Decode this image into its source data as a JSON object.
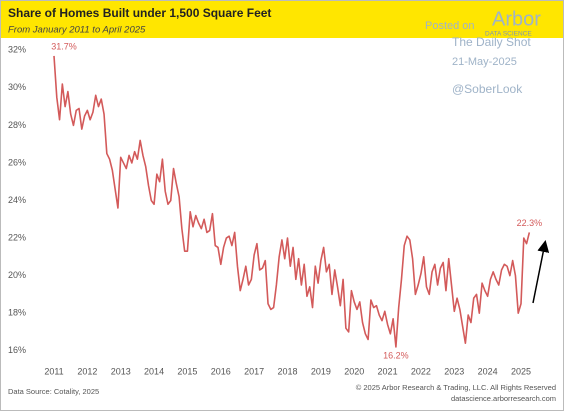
{
  "chart_data": {
    "type": "line",
    "title": "Share of Homes Built under 1,500 Square Feet",
    "subtitle": "From January 2011 to April 2025",
    "source": "Data Source: Cotality, 2025",
    "copyright": "© 2025 Arbor Research & Trading, LLC. All Rights Reserved",
    "website": "datascience.arborresearch.com",
    "watermark": {
      "posted": "Posted on",
      "brand": "Arbor",
      "brand_sub": "DATA SCIENCE",
      "outlet": "The Daily Shot",
      "date": "21-May-2025",
      "handle": "@SoberLook"
    },
    "categories": [
      "2011",
      null,
      null,
      null,
      null,
      null,
      null,
      null,
      null,
      null,
      null,
      null,
      "2012",
      null,
      null,
      null,
      null,
      null,
      null,
      null,
      null,
      null,
      null,
      null,
      "2013",
      null,
      null,
      null,
      null,
      null,
      null,
      null,
      null,
      null,
      null,
      null,
      "2014",
      null,
      null,
      null,
      null,
      null,
      null,
      null,
      null,
      null,
      null,
      null,
      "2015",
      null,
      null,
      null,
      null,
      null,
      null,
      null,
      null,
      null,
      null,
      null,
      "2016",
      null,
      null,
      null,
      null,
      null,
      null,
      null,
      null,
      null,
      null,
      null,
      "2017",
      null,
      null,
      null,
      null,
      null,
      null,
      null,
      null,
      null,
      null,
      null,
      "2018",
      null,
      null,
      null,
      null,
      null,
      null,
      null,
      null,
      null,
      null,
      null,
      "2019",
      null,
      null,
      null,
      null,
      null,
      null,
      null,
      null,
      null,
      null,
      null,
      "2020",
      null,
      null,
      null,
      null,
      null,
      null,
      null,
      null,
      null,
      null,
      null,
      "2021",
      null,
      null,
      null,
      null,
      null,
      null,
      null,
      null,
      null,
      null,
      null,
      "2022",
      null,
      null,
      null,
      null,
      null,
      null,
      null,
      null,
      null,
      null,
      null,
      "2023",
      null,
      null,
      null,
      null,
      null,
      null,
      null,
      null,
      null,
      null,
      null,
      "2024",
      null,
      null,
      null,
      null,
      null,
      null,
      null,
      null,
      null,
      null,
      null,
      "2025",
      null,
      null,
      null
    ],
    "series": [
      {
        "color": "#d35a5a",
        "values": [
          31.7,
          29.5,
          28.3,
          30.2,
          29.0,
          29.8,
          28.6,
          28.0,
          28.8,
          28.9,
          27.8,
          28.5,
          28.8,
          28.3,
          28.7,
          29.6,
          29.0,
          29.4,
          28.6,
          26.5,
          26.2,
          25.6,
          24.6,
          23.6,
          26.3,
          26.0,
          25.7,
          26.4,
          26.0,
          26.6,
          26.2,
          27.2,
          26.4,
          25.8,
          24.8,
          24.0,
          23.8,
          25.4,
          25.0,
          26.2,
          24.5,
          23.8,
          24.0,
          25.7,
          24.9,
          24.2,
          22.5,
          21.3,
          21.3,
          23.4,
          22.6,
          23.2,
          22.8,
          22.5,
          23.0,
          22.3,
          22.4,
          23.3,
          21.6,
          21.5,
          20.6,
          21.5,
          22.0,
          22.1,
          21.6,
          22.3,
          20.5,
          19.2,
          19.8,
          20.5,
          19.5,
          19.8,
          21.1,
          21.7,
          20.3,
          20.4,
          20.8,
          18.5,
          18.2,
          18.3,
          19.5,
          21.0,
          21.9,
          20.9,
          22.0,
          20.5,
          21.5,
          19.8,
          20.9,
          19.5,
          20.6,
          18.9,
          19.4,
          18.3,
          20.5,
          19.6,
          20.8,
          21.5,
          20.2,
          20.6,
          19.0,
          20.3,
          19.4,
          18.4,
          19.8,
          17.2,
          17.0,
          19.2,
          18.6,
          18.2,
          18.6,
          17.5,
          16.9,
          16.6,
          18.7,
          18.3,
          18.4,
          17.9,
          17.6,
          18.1,
          17.4,
          16.9,
          17.7,
          16.2,
          18.3,
          19.8,
          21.6,
          22.1,
          21.9,
          20.9,
          19.0,
          19.5,
          20.1,
          21.0,
          19.4,
          19.0,
          20.2,
          20.6,
          19.5,
          20.4,
          20.7,
          19.2,
          20.9,
          19.5,
          18.1,
          18.8,
          18.2,
          17.3,
          16.4,
          17.9,
          17.5,
          18.8,
          19.0,
          18.0,
          19.6,
          19.2,
          18.9,
          19.8,
          20.2,
          19.8,
          19.5,
          20.3,
          20.6,
          20.5,
          20.0,
          20.8,
          20.0,
          18.0,
          18.5,
          22.0,
          21.7,
          22.3
        ],
        "value_labels": [
          "31.7%",
          null,
          null,
          null,
          null,
          null,
          null,
          null,
          null,
          null,
          null,
          null,
          null,
          null,
          null,
          null,
          null,
          null,
          null,
          null,
          null,
          null,
          null,
          null,
          null,
          null,
          null,
          null,
          null,
          null,
          null,
          null,
          null,
          null,
          null,
          null,
          null,
          null,
          null,
          null,
          null,
          null,
          null,
          null,
          null,
          null,
          null,
          null,
          null,
          null,
          null,
          null,
          null,
          null,
          null,
          null,
          null,
          null,
          null,
          null,
          null,
          null,
          null,
          null,
          null,
          null,
          null,
          null,
          null,
          null,
          null,
          null,
          null,
          null,
          null,
          null,
          null,
          null,
          null,
          null,
          null,
          null,
          null,
          null,
          null,
          null,
          null,
          null,
          null,
          null,
          null,
          null,
          null,
          null,
          null,
          null,
          null,
          null,
          null,
          null,
          null,
          null,
          null,
          null,
          null,
          null,
          null,
          null,
          null,
          null,
          null,
          null,
          null,
          null,
          null,
          null,
          null,
          null,
          null,
          null,
          null,
          null,
          null,
          "16.2%",
          null,
          null,
          null,
          null,
          null,
          null,
          null,
          null,
          null,
          null,
          null,
          null,
          null,
          null,
          null,
          null,
          null,
          null,
          null,
          null,
          null,
          null,
          null,
          null,
          null,
          null,
          null,
          null,
          null,
          null,
          null,
          null,
          null,
          null,
          null,
          null,
          null,
          null,
          null,
          null,
          null,
          null,
          null,
          null,
          null,
          null,
          null,
          "22.3%"
        ]
      }
    ],
    "ylim": [
      15.4,
      32.6
    ],
    "yticks": [
      {
        "value": 16,
        "label": "16%"
      },
      {
        "value": 18,
        "label": "18%"
      },
      {
        "value": 20,
        "label": "20%"
      },
      {
        "value": 22,
        "label": "22%"
      },
      {
        "value": 24,
        "label": "24%"
      },
      {
        "value": 26,
        "label": "26%"
      },
      {
        "value": 28,
        "label": "28%"
      },
      {
        "value": 30,
        "label": "30%"
      },
      {
        "value": 32,
        "label": "32%"
      }
    ],
    "grid": false
  }
}
